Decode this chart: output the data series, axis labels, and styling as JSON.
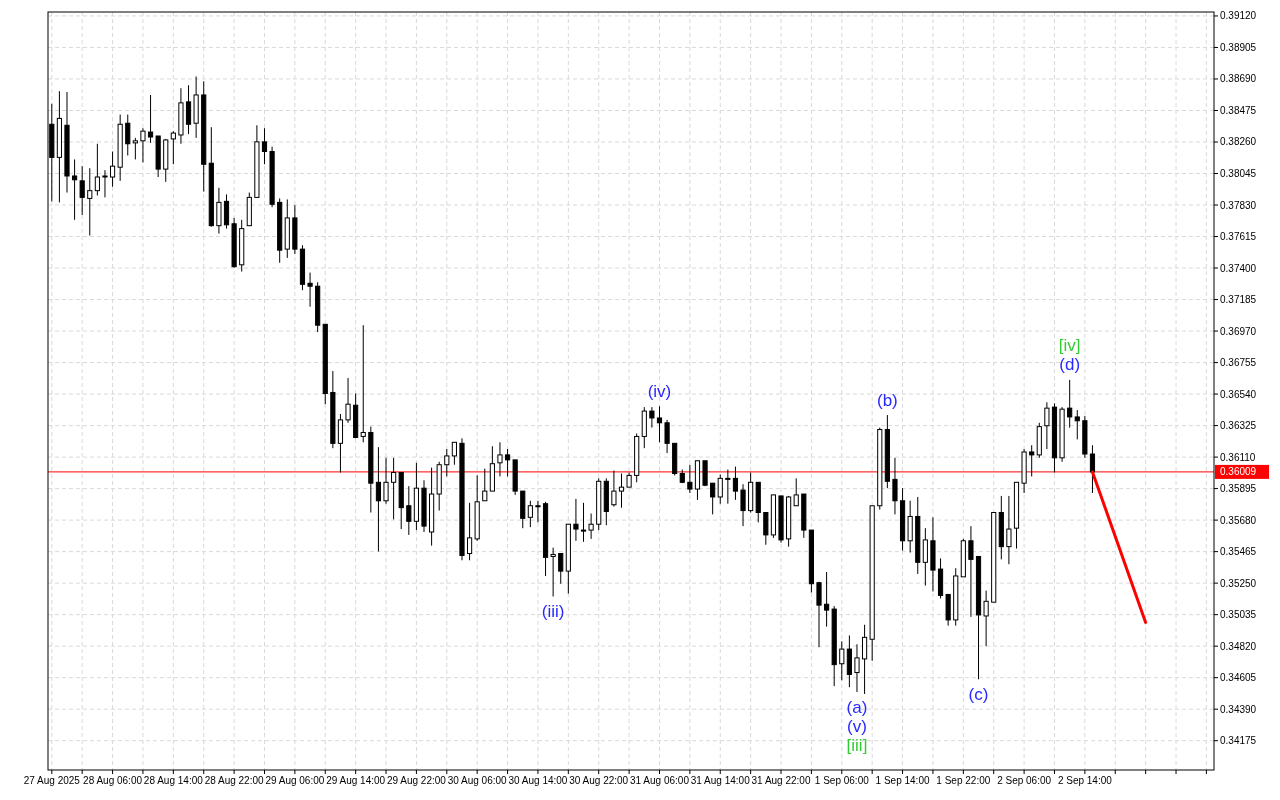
{
  "chart_data": {
    "type": "candlestick",
    "color": "#000000",
    "grid": true,
    "xlim": [
      "2025-08-27T21:30",
      "2025-09-03T07:00"
    ],
    "ylim": [
      0.33975,
      0.39147
    ],
    "xticks": [
      {
        "value": "2025-08-27T22:00",
        "label": "27 Aug 2025"
      },
      {
        "value": "2025-08-28T02:00",
        "label": null
      },
      {
        "value": "2025-08-28T06:00",
        "label": "28 Aug 06:00"
      },
      {
        "value": "2025-08-28T10:00",
        "label": null
      },
      {
        "value": "2025-08-28T14:00",
        "label": "28 Aug 14:00"
      },
      {
        "value": "2025-08-28T18:00",
        "label": null
      },
      {
        "value": "2025-08-28T22:00",
        "label": "28 Aug 22:00"
      },
      {
        "value": "2025-08-29T02:00",
        "label": null
      },
      {
        "value": "2025-08-29T06:00",
        "label": "29 Aug 06:00"
      },
      {
        "value": "2025-08-29T10:00",
        "label": null
      },
      {
        "value": "2025-08-29T14:00",
        "label": "29 Aug 14:00"
      },
      {
        "value": "2025-08-29T18:00",
        "label": null
      },
      {
        "value": "2025-08-29T22:00",
        "label": "29 Aug 22:00"
      },
      {
        "value": "2025-08-30T02:00",
        "label": null
      },
      {
        "value": "2025-08-30T06:00",
        "label": "30 Aug 06:00"
      },
      {
        "value": "2025-08-30T10:00",
        "label": null
      },
      {
        "value": "2025-08-30T14:00",
        "label": "30 Aug 14:00"
      },
      {
        "value": "2025-08-30T18:00",
        "label": null
      },
      {
        "value": "2025-08-30T22:00",
        "label": "30 Aug 22:00"
      },
      {
        "value": "2025-08-31T02:00",
        "label": null
      },
      {
        "value": "2025-08-31T06:00",
        "label": "31 Aug 06:00"
      },
      {
        "value": "2025-08-31T10:00",
        "label": null
      },
      {
        "value": "2025-08-31T14:00",
        "label": "31 Aug 14:00"
      },
      {
        "value": "2025-08-31T18:00",
        "label": null
      },
      {
        "value": "2025-08-31T22:00",
        "label": "31 Aug 22:00"
      },
      {
        "value": "2025-09-01T02:00",
        "label": null
      },
      {
        "value": "2025-09-01T06:00",
        "label": "1 Sep 06:00"
      },
      {
        "value": "2025-09-01T10:00",
        "label": null
      },
      {
        "value": "2025-09-01T14:00",
        "label": "1 Sep 14:00"
      },
      {
        "value": "2025-09-01T18:00",
        "label": null
      },
      {
        "value": "2025-09-01T22:00",
        "label": "1 Sep 22:00"
      },
      {
        "value": "2025-09-02T02:00",
        "label": null
      },
      {
        "value": "2025-09-02T06:00",
        "label": "2 Sep 06:00"
      },
      {
        "value": "2025-09-02T10:00",
        "label": null
      },
      {
        "value": "2025-09-02T14:00",
        "label": "2 Sep 14:00"
      },
      {
        "value": "2025-09-02T18:00",
        "label": null
      },
      {
        "value": "2025-09-02T22:00",
        "label": null
      },
      {
        "value": "2025-09-03T02:00",
        "label": null
      },
      {
        "value": "2025-09-03T06:00",
        "label": null
      }
    ],
    "yticks": [
      0.34175,
      {
        "value": 0.3439,
        "label": "0.34390"
      },
      0.34605,
      {
        "value": 0.3482,
        "label": "0.34820"
      },
      0.35035,
      {
        "value": 0.3525,
        "label": "0.35250"
      },
      0.35465,
      {
        "value": 0.3568,
        "label": "0.35680"
      },
      0.35895,
      {
        "value": 0.3611,
        "label": "0.36110"
      },
      0.36325,
      {
        "value": 0.3654,
        "label": "0.36540"
      },
      0.36755,
      {
        "value": 0.3697,
        "label": "0.36970"
      },
      0.37185,
      {
        "value": 0.374,
        "label": "0.37400"
      },
      0.37615,
      {
        "value": 0.3783,
        "label": "0.37830"
      },
      0.38045,
      {
        "value": 0.3826,
        "label": "0.38260"
      },
      0.38475,
      {
        "value": 0.3869,
        "label": "0.38690"
      },
      0.38905,
      {
        "value": 0.3912,
        "label": "0.39120"
      }
    ],
    "x": [
      "2025-08-27T22:00",
      "2025-08-27T23:00",
      "2025-08-28T00:00",
      "2025-08-28T01:00",
      "2025-08-28T02:00",
      "2025-08-28T03:00",
      "2025-08-28T04:00",
      "2025-08-28T05:00",
      "2025-08-28T06:00",
      "2025-08-28T07:00",
      "2025-08-28T08:00",
      "2025-08-28T09:00",
      "2025-08-28T10:00",
      "2025-08-28T11:00",
      "2025-08-28T12:00",
      "2025-08-28T13:00",
      "2025-08-28T14:00",
      "2025-08-28T15:00",
      "2025-08-28T16:00",
      "2025-08-28T17:00",
      "2025-08-28T18:00",
      "2025-08-28T19:00",
      "2025-08-28T20:00",
      "2025-08-28T21:00",
      "2025-08-28T22:00",
      "2025-08-28T23:00",
      "2025-08-29T00:00",
      "2025-08-29T01:00",
      "2025-08-29T02:00",
      "2025-08-29T03:00",
      "2025-08-29T04:00",
      "2025-08-29T05:00",
      "2025-08-29T06:00",
      "2025-08-29T07:00",
      "2025-08-29T08:00",
      "2025-08-29T09:00",
      "2025-08-29T10:00",
      "2025-08-29T11:00",
      "2025-08-29T12:00",
      "2025-08-29T13:00",
      "2025-08-29T14:00",
      "2025-08-29T15:00",
      "2025-08-29T16:00",
      "2025-08-29T17:00",
      "2025-08-29T18:00",
      "2025-08-29T19:00",
      "2025-08-29T20:00",
      "2025-08-29T21:00",
      "2025-08-29T22:00",
      "2025-08-29T23:00",
      "2025-08-30T00:00",
      "2025-08-30T01:00",
      "2025-08-30T02:00",
      "2025-08-30T03:00",
      "2025-08-30T04:00",
      "2025-08-30T05:00",
      "2025-08-30T06:00",
      "2025-08-30T07:00",
      "2025-08-30T08:00",
      "2025-08-30T09:00",
      "2025-08-30T10:00",
      "2025-08-30T11:00",
      "2025-08-30T12:00",
      "2025-08-30T13:00",
      "2025-08-30T14:00",
      "2025-08-30T15:00",
      "2025-08-30T16:00",
      "2025-08-30T17:00",
      "2025-08-30T18:00",
      "2025-08-30T19:00",
      "2025-08-30T20:00",
      "2025-08-30T21:00",
      "2025-08-30T22:00",
      "2025-08-30T23:00",
      "2025-08-31T00:00",
      "2025-08-31T01:00",
      "2025-08-31T02:00",
      "2025-08-31T03:00",
      "2025-08-31T04:00",
      "2025-08-31T05:00",
      "2025-08-31T06:00",
      "2025-08-31T07:00",
      "2025-08-31T08:00",
      "2025-08-31T09:00",
      "2025-08-31T10:00",
      "2025-08-31T11:00",
      "2025-08-31T12:00",
      "2025-08-31T13:00",
      "2025-08-31T14:00",
      "2025-08-31T15:00",
      "2025-08-31T16:00",
      "2025-08-31T17:00",
      "2025-08-31T18:00",
      "2025-08-31T19:00",
      "2025-08-31T20:00",
      "2025-08-31T21:00",
      "2025-08-31T22:00",
      "2025-08-31T23:00",
      "2025-09-01T00:00",
      "2025-09-01T01:00",
      "2025-09-01T02:00",
      "2025-09-01T03:00",
      "2025-09-01T04:00",
      "2025-09-01T05:00",
      "2025-09-01T06:00",
      "2025-09-01T07:00",
      "2025-09-01T08:00",
      "2025-09-01T09:00",
      "2025-09-01T10:00",
      "2025-09-01T11:00",
      "2025-09-01T12:00",
      "2025-09-01T13:00",
      "2025-09-01T14:00",
      "2025-09-01T15:00",
      "2025-09-01T16:00",
      "2025-09-01T17:00",
      "2025-09-01T18:00",
      "2025-09-01T19:00",
      "2025-09-01T20:00",
      "2025-09-01T21:00",
      "2025-09-01T22:00",
      "2025-09-01T23:00",
      "2025-09-02T00:00",
      "2025-09-02T01:00",
      "2025-09-02T02:00",
      "2025-09-02T03:00",
      "2025-09-02T04:00",
      "2025-09-02T05:00",
      "2025-09-02T06:00",
      "2025-09-02T07:00",
      "2025-09-02T08:00",
      "2025-09-02T09:00",
      "2025-09-02T10:00",
      "2025-09-02T11:00",
      "2025-09-02T12:00",
      "2025-09-02T13:00",
      "2025-09-02T14:00",
      "2025-09-02T15:00"
    ],
    "ohlc": [
      [
        0.38381,
        0.38521,
        0.37855,
        0.38155
      ],
      [
        0.38155,
        0.38607,
        0.37848,
        0.38421
      ],
      [
        0.38374,
        0.38601,
        0.37915,
        0.38028
      ],
      [
        0.38028,
        0.38141,
        0.37729,
        0.38002
      ],
      [
        0.37995,
        0.38095,
        0.37762,
        0.37882
      ],
      [
        0.37875,
        0.38081,
        0.37622,
        0.37928
      ],
      [
        0.37928,
        0.38248,
        0.37895,
        0.38021
      ],
      [
        0.38028,
        0.38068,
        0.37882,
        0.38028
      ],
      [
        0.38021,
        0.38195,
        0.37955,
        0.38095
      ],
      [
        0.38088,
        0.38447,
        0.37995,
        0.38381
      ],
      [
        0.38388,
        0.38447,
        0.38168,
        0.38248
      ],
      [
        0.38254,
        0.38288,
        0.38141,
        0.38268
      ],
      [
        0.38268,
        0.38354,
        0.38121,
        0.38334
      ],
      [
        0.38328,
        0.38581,
        0.38254,
        0.38294
      ],
      [
        0.38301,
        0.38301,
        0.38021,
        0.38075
      ],
      [
        0.38075,
        0.38281,
        0.37988,
        0.38274
      ],
      [
        0.38281,
        0.38334,
        0.38108,
        0.38321
      ],
      [
        0.38308,
        0.38627,
        0.38248,
        0.38527
      ],
      [
        0.38534,
        0.38647,
        0.38314,
        0.38381
      ],
      [
        0.38388,
        0.38707,
        0.38288,
        0.38581
      ],
      [
        0.38581,
        0.38674,
        0.37922,
        0.38108
      ],
      [
        0.38115,
        0.38361,
        0.37682,
        0.37689
      ],
      [
        0.37689,
        0.37948,
        0.37635,
        0.37848
      ],
      [
        0.37855,
        0.37902,
        0.37669,
        0.37695
      ],
      [
        0.37702,
        0.37742,
        0.37403,
        0.37409
      ],
      [
        0.37422,
        0.37729,
        0.37376,
        0.37669
      ],
      [
        0.37689,
        0.37915,
        0.37689,
        0.37882
      ],
      [
        0.37882,
        0.38374,
        0.37882,
        0.38261
      ],
      [
        0.38261,
        0.38354,
        0.38108,
        0.38195
      ],
      [
        0.38195,
        0.38228,
        0.37815,
        0.37835
      ],
      [
        0.37848,
        0.37875,
        0.37436,
        0.37522
      ],
      [
        0.37529,
        0.37868,
        0.37469,
        0.37742
      ],
      [
        0.37742,
        0.37829,
        0.37496,
        0.37529
      ],
      [
        0.37529,
        0.37556,
        0.37249,
        0.37289
      ],
      [
        0.37296,
        0.37369,
        0.37136,
        0.37276
      ],
      [
        0.37276,
        0.37303,
        0.36963,
        0.3701
      ],
      [
        0.37016,
        0.37016,
        0.36471,
        0.36544
      ],
      [
        0.36551,
        0.36697,
        0.36171,
        0.36204
      ],
      [
        0.36204,
        0.36404,
        0.36005,
        0.36364
      ],
      [
        0.36364,
        0.3665,
        0.36344,
        0.36471
      ],
      [
        0.36464,
        0.36544,
        0.36238,
        0.36244
      ],
      [
        0.36251,
        0.3701,
        0.36211,
        0.36278
      ],
      [
        0.36278,
        0.36318,
        0.35732,
        0.35932
      ],
      [
        0.35938,
        0.36178,
        0.35466,
        0.35812
      ],
      [
        0.35812,
        0.36105,
        0.35792,
        0.35938
      ],
      [
        0.35938,
        0.36105,
        0.35685,
        0.36005
      ],
      [
        0.36005,
        0.36005,
        0.35619,
        0.35765
      ],
      [
        0.35778,
        0.35912,
        0.35579,
        0.35672
      ],
      [
        0.35672,
        0.36071,
        0.35612,
        0.35898
      ],
      [
        0.35898,
        0.35952,
        0.35599,
        0.35639
      ],
      [
        0.35599,
        0.36038,
        0.35506,
        0.35858
      ],
      [
        0.35858,
        0.36078,
        0.35745,
        0.36058
      ],
      [
        0.36058,
        0.36165,
        0.35978,
        0.36118
      ],
      [
        0.36118,
        0.36211,
        0.36058,
        0.36211
      ],
      [
        0.36204,
        0.36238,
        0.35406,
        0.35439
      ],
      [
        0.35452,
        0.35798,
        0.35406,
        0.35559
      ],
      [
        0.35552,
        0.35985,
        0.35539,
        0.35805
      ],
      [
        0.35812,
        0.36031,
        0.35812,
        0.35878
      ],
      [
        0.35878,
        0.36184,
        0.35878,
        0.36065
      ],
      [
        0.36071,
        0.36211,
        0.35978,
        0.36125
      ],
      [
        0.36125,
        0.36165,
        0.35978,
        0.36091
      ],
      [
        0.36091,
        0.36091,
        0.35852,
        0.35878
      ],
      [
        0.35878,
        0.35878,
        0.35625,
        0.35692
      ],
      [
        0.35699,
        0.35812,
        0.35632,
        0.35778
      ],
      [
        0.35778,
        0.35812,
        0.35665,
        0.35772
      ],
      [
        0.35792,
        0.35805,
        0.35299,
        0.35426
      ],
      [
        0.35432,
        0.35492,
        0.35159,
        0.35446
      ],
      [
        0.35452,
        0.35452,
        0.35246,
        0.35332
      ],
      [
        0.35332,
        0.35652,
        0.35179,
        0.35652
      ],
      [
        0.35652,
        0.35825,
        0.35539,
        0.35619
      ],
      [
        0.35612,
        0.35798,
        0.35532,
        0.35605
      ],
      [
        0.35612,
        0.35725,
        0.35552,
        0.35652
      ],
      [
        0.35652,
        0.35965,
        0.35612,
        0.35945
      ],
      [
        0.35945,
        0.35965,
        0.35645,
        0.35739
      ],
      [
        0.35785,
        0.36018,
        0.35772,
        0.35878
      ],
      [
        0.35878,
        0.35998,
        0.35765,
        0.35905
      ],
      [
        0.35905,
        0.36005,
        0.35905,
        0.35985
      ],
      [
        0.35985,
        0.36271,
        0.35938,
        0.36251
      ],
      [
        0.36251,
        0.36451,
        0.36171,
        0.36424
      ],
      [
        0.36424,
        0.36451,
        0.36311,
        0.36377
      ],
      [
        0.36377,
        0.36457,
        0.36211,
        0.36344
      ],
      [
        0.36344,
        0.36364,
        0.36138,
        0.36204
      ],
      [
        0.36204,
        0.36204,
        0.35985,
        0.35998
      ],
      [
        0.35998,
        0.36025,
        0.35932,
        0.35938
      ],
      [
        0.35938,
        0.36058,
        0.35865,
        0.35892
      ],
      [
        0.35892,
        0.36085,
        0.35818,
        0.36085
      ],
      [
        0.36085,
        0.36085,
        0.35912,
        0.35918
      ],
      [
        0.35932,
        0.35932,
        0.35719,
        0.35838
      ],
      [
        0.35838,
        0.35991,
        0.35792,
        0.35965
      ],
      [
        0.35965,
        0.36025,
        0.35792,
        0.35958
      ],
      [
        0.35965,
        0.36045,
        0.35818,
        0.35878
      ],
      [
        0.35885,
        0.35925,
        0.35639,
        0.35745
      ],
      [
        0.35745,
        0.36005,
        0.35732,
        0.35938
      ],
      [
        0.35938,
        0.35938,
        0.35665,
        0.35732
      ],
      [
        0.35732,
        0.35732,
        0.35512,
        0.35579
      ],
      [
        0.35579,
        0.35852,
        0.35559,
        0.35852
      ],
      [
        0.35845,
        0.35845,
        0.35526,
        0.35545
      ],
      [
        0.35552,
        0.35845,
        0.35499,
        0.35838
      ],
      [
        0.35778,
        0.35965,
        0.35778,
        0.35852
      ],
      [
        0.35858,
        0.35858,
        0.35559,
        0.35612
      ],
      [
        0.35612,
        0.35612,
        0.35186,
        0.35246
      ],
      [
        0.35253,
        0.35259,
        0.34813,
        0.351
      ],
      [
        0.35106,
        0.35326,
        0.34953,
        0.35066
      ],
      [
        0.35073,
        0.35093,
        0.34547,
        0.34694
      ],
      [
        0.347,
        0.34853,
        0.34587,
        0.348
      ],
      [
        0.348,
        0.34893,
        0.3454,
        0.34627
      ],
      [
        0.3464,
        0.34833,
        0.34507,
        0.3474
      ],
      [
        0.34733,
        0.34966,
        0.34494,
        0.3488
      ],
      [
        0.34867,
        0.35778,
        0.3472,
        0.35778
      ],
      [
        0.35778,
        0.36311,
        0.35752,
        0.36298
      ],
      [
        0.36298,
        0.36397,
        0.35898,
        0.35945
      ],
      [
        0.35958,
        0.36105,
        0.35719,
        0.35812
      ],
      [
        0.35812,
        0.35898,
        0.35472,
        0.35539
      ],
      [
        0.35539,
        0.35812,
        0.35459,
        0.35705
      ],
      [
        0.35705,
        0.35838,
        0.35313,
        0.35392
      ],
      [
        0.35392,
        0.35625,
        0.35233,
        0.35545
      ],
      [
        0.35539,
        0.35699,
        0.35193,
        0.35339
      ],
      [
        0.35346,
        0.35419,
        0.35146,
        0.35166
      ],
      [
        0.35173,
        0.35173,
        0.3496,
        0.34999
      ],
      [
        0.34999,
        0.35352,
        0.3496,
        0.35299
      ],
      [
        0.35293,
        0.35552,
        0.35293,
        0.35539
      ],
      [
        0.35539,
        0.35639,
        0.3502,
        0.35412
      ],
      [
        0.35432,
        0.35432,
        0.34594,
        0.35033
      ],
      [
        0.35026,
        0.35199,
        0.3482,
        0.35126
      ],
      [
        0.3512,
        0.35732,
        0.3512,
        0.35732
      ],
      [
        0.35732,
        0.35845,
        0.35412,
        0.35499
      ],
      [
        0.35499,
        0.35845,
        0.35379,
        0.35619
      ],
      [
        0.35625,
        0.35938,
        0.35486,
        0.35938
      ],
      [
        0.35932,
        0.36165,
        0.35865,
        0.36145
      ],
      [
        0.36145,
        0.36191,
        0.35978,
        0.36125
      ],
      [
        0.36125,
        0.36344,
        0.36105,
        0.36318
      ],
      [
        0.36324,
        0.36484,
        0.36165,
        0.36444
      ],
      [
        0.36451,
        0.36477,
        0.36005,
        0.36105
      ],
      [
        0.36105,
        0.36451,
        0.36078,
        0.36437
      ],
      [
        0.36444,
        0.36637,
        0.36311,
        0.36384
      ],
      [
        0.36384,
        0.36431,
        0.36231,
        0.36358
      ],
      [
        0.36358,
        0.36391,
        0.36105,
        0.36131
      ],
      [
        0.36131,
        0.36191,
        0.35865,
        0.36009
      ]
    ],
    "series": [
      {
        "type": "line",
        "color": "#ff0000",
        "x": [
          "2025-09-02T15:00",
          "2025-09-02T22:00"
        ],
        "values": [
          0.36009,
          0.34982
        ]
      }
    ],
    "ref_lines": [
      {
        "axis": "y",
        "value": 0.36009,
        "label": "0.36009",
        "color": "#ff0000"
      }
    ],
    "annotations": [
      {
        "text": "(iii)",
        "x": "2025-08-30T16:00",
        "y": 0.35159
      },
      {
        "text": "(iv)",
        "x": "2025-08-31T06:00",
        "y": 0.36457
      },
      {
        "text": "(a)",
        "x": "2025-09-01T08:00",
        "y": 0.34507
      },
      {
        "text": "(v)",
        "x": "2025-09-01T08:00",
        "y": 0.34507
      },
      {
        "text": "[iii]",
        "x": "2025-09-01T08:00",
        "y": 0.34507
      },
      {
        "text": "(b)",
        "x": "2025-09-01T12:00",
        "y": 0.36397
      },
      {
        "text": "(c)",
        "x": "2025-09-02T00:00",
        "y": 0.34594
      },
      {
        "text": "(d)",
        "x": "2025-09-02T12:00",
        "y": 0.36637
      },
      {
        "text": "[iv]",
        "x": "2025-09-02T12:00",
        "y": 0.36637
      }
    ]
  }
}
